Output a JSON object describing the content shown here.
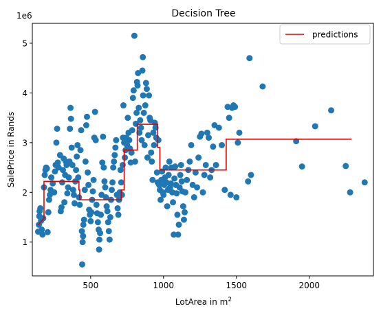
{
  "chart_data": {
    "type": "scatter",
    "title": "Decision Tree",
    "xlabel": "LotArea in m",
    "xlabel_superscript": "2",
    "ylabel": "SalePrice in Rands",
    "y_offset_label": "1e6",
    "xlim": [
      100,
      2440
    ],
    "ylim": [
      0.32,
      5.4
    ],
    "x_ticks": [
      500,
      1000,
      1500,
      2000
    ],
    "y_ticks": [
      1,
      2,
      3,
      4,
      5
    ],
    "grid": false,
    "legend": {
      "placement": "top-right",
      "entries": [
        "predictions"
      ]
    },
    "colors": {
      "points": "#1f77b4",
      "predictions": "#e00000"
    },
    "series": [
      {
        "kind": "step-line",
        "name": "predictions",
        "x": [
          138,
          180,
          180,
          420,
          420,
          425,
          425,
          710,
          710,
          730,
          730,
          820,
          820,
          960,
          960,
          975,
          975,
          1430,
          1430,
          2290
        ],
        "y": [
          1.34,
          1.48,
          2.22,
          2.22,
          2.05,
          2.05,
          1.85,
          1.85,
          2.05,
          2.05,
          2.85,
          2.85,
          3.37,
          3.37,
          2.9,
          2.9,
          2.45,
          2.45,
          3.07,
          3.07
        ]
      },
      {
        "kind": "points",
        "name": "",
        "points": [
          [
            140,
            1.21
          ],
          [
            145,
            1.35
          ],
          [
            148,
            1.52
          ],
          [
            150,
            1.62
          ],
          [
            155,
            1.68
          ],
          [
            160,
            1.43
          ],
          [
            165,
            1.25
          ],
          [
            170,
            1.15
          ],
          [
            175,
            1.48
          ],
          [
            180,
            2.1
          ],
          [
            185,
            2.35
          ],
          [
            190,
            2.45
          ],
          [
            195,
            2.5
          ],
          [
            200,
            2.48
          ],
          [
            205,
            1.2
          ],
          [
            210,
            1.6
          ],
          [
            215,
            1.85
          ],
          [
            220,
            1.95
          ],
          [
            225,
            2.05
          ],
          [
            230,
            2.3
          ],
          [
            240,
            2.18
          ],
          [
            250,
            2.0
          ],
          [
            255,
            2.42
          ],
          [
            260,
            2.55
          ],
          [
            265,
            3.0
          ],
          [
            270,
            3.28
          ],
          [
            275,
            2.6
          ],
          [
            280,
            2.5
          ],
          [
            290,
            2.75
          ],
          [
            295,
            1.62
          ],
          [
            300,
            1.7
          ],
          [
            305,
            2.2
          ],
          [
            310,
            2.45
          ],
          [
            315,
            2.68
          ],
          [
            320,
            1.8
          ],
          [
            325,
            2.35
          ],
          [
            330,
            2.62
          ],
          [
            335,
            2.55
          ],
          [
            340,
            1.98
          ],
          [
            345,
            2.1
          ],
          [
            350,
            2.3
          ],
          [
            355,
            2.62
          ],
          [
            358,
            3.28
          ],
          [
            362,
            3.7
          ],
          [
            365,
            3.48
          ],
          [
            370,
            2.9
          ],
          [
            375,
            2.55
          ],
          [
            380,
            2.05
          ],
          [
            385,
            1.95
          ],
          [
            390,
            1.78
          ],
          [
            395,
            2.22
          ],
          [
            400,
            2.45
          ],
          [
            405,
            2.72
          ],
          [
            410,
            2.95
          ],
          [
            415,
            2.3
          ],
          [
            420,
            1.9
          ],
          [
            425,
            1.75
          ],
          [
            430,
            2.85
          ],
          [
            435,
            3.25
          ],
          [
            440,
            1.22
          ],
          [
            442,
            0.55
          ],
          [
            445,
            1.0
          ],
          [
            448,
            1.12
          ],
          [
            450,
            1.35
          ],
          [
            455,
            1.45
          ],
          [
            460,
            2.05
          ],
          [
            465,
            2.62
          ],
          [
            470,
            3.35
          ],
          [
            475,
            3.52
          ],
          [
            480,
            2.4
          ],
          [
            485,
            2.15
          ],
          [
            490,
            1.65
          ],
          [
            495,
            1.55
          ],
          [
            500,
            1.42
          ],
          [
            505,
            1.6
          ],
          [
            510,
            1.85
          ],
          [
            515,
            2.02
          ],
          [
            520,
            2.25
          ],
          [
            525,
            3.1
          ],
          [
            530,
            3.62
          ],
          [
            535,
            3.05
          ],
          [
            540,
            1.75
          ],
          [
            545,
            1.58
          ],
          [
            550,
            1.4
          ],
          [
            555,
            1.25
          ],
          [
            558,
            0.85
          ],
          [
            560,
            1.05
          ],
          [
            565,
            1.18
          ],
          [
            570,
            1.55
          ],
          [
            575,
            1.95
          ],
          [
            580,
            2.6
          ],
          [
            585,
            3.12
          ],
          [
            590,
            2.5
          ],
          [
            595,
            2.22
          ],
          [
            600,
            2.1
          ],
          [
            605,
            1.9
          ],
          [
            610,
            1.72
          ],
          [
            615,
            1.62
          ],
          [
            620,
            1.4
          ],
          [
            625,
            1.22
          ],
          [
            630,
            1.05
          ],
          [
            635,
            1.5
          ],
          [
            640,
            1.85
          ],
          [
            645,
            2.05
          ],
          [
            650,
            2.2
          ],
          [
            655,
            2.5
          ],
          [
            660,
            2.62
          ],
          [
            665,
            2.75
          ],
          [
            670,
            2.9
          ],
          [
            675,
            3.05
          ],
          [
            680,
            1.95
          ],
          [
            685,
            1.68
          ],
          [
            690,
            1.55
          ],
          [
            695,
            1.85
          ],
          [
            700,
            2.0
          ],
          [
            705,
            2.45
          ],
          [
            710,
            2.2
          ],
          [
            715,
            1.95
          ],
          [
            720,
            2.55
          ],
          [
            722,
            3.1
          ],
          [
            725,
            3.75
          ],
          [
            730,
            3.0
          ],
          [
            735,
            2.7
          ],
          [
            740,
            2.85
          ],
          [
            745,
            3.1
          ],
          [
            750,
            2.95
          ],
          [
            755,
            3.5
          ],
          [
            760,
            3.2
          ],
          [
            765,
            3.05
          ],
          [
            770,
            2.88
          ],
          [
            775,
            2.6
          ],
          [
            780,
            2.8
          ],
          [
            785,
            3.25
          ],
          [
            790,
            3.9
          ],
          [
            795,
            4.05
          ],
          [
            800,
            5.15
          ],
          [
            805,
            2.62
          ],
          [
            810,
            3.38
          ],
          [
            815,
            3.6
          ],
          [
            818,
            4.22
          ],
          [
            822,
            4.15
          ],
          [
            825,
            4.4
          ],
          [
            830,
            3.7
          ],
          [
            835,
            3.2
          ],
          [
            840,
            3.45
          ],
          [
            845,
            3.3
          ],
          [
            850,
            3.05
          ],
          [
            855,
            4.45
          ],
          [
            858,
            4.72
          ],
          [
            860,
            3.95
          ],
          [
            865,
            3.6
          ],
          [
            870,
            2.95
          ],
          [
            875,
            3.75
          ],
          [
            880,
            4.2
          ],
          [
            885,
            4.08
          ],
          [
            890,
            2.7
          ],
          [
            895,
            3.15
          ],
          [
            900,
            3.95
          ],
          [
            905,
            3.5
          ],
          [
            910,
            3.45
          ],
          [
            915,
            2.8
          ],
          [
            920,
            2.62
          ],
          [
            925,
            2.25
          ],
          [
            930,
            3.2
          ],
          [
            935,
            2.95
          ],
          [
            940,
            3.4
          ],
          [
            945,
            3.3
          ],
          [
            950,
            3.1
          ],
          [
            955,
            2.4
          ],
          [
            960,
            2.2
          ],
          [
            965,
            3.05
          ],
          [
            970,
            2.15
          ],
          [
            975,
            2.05
          ],
          [
            980,
            1.85
          ],
          [
            985,
            2.25
          ],
          [
            990,
            2.42
          ],
          [
            995,
            2.0
          ],
          [
            1000,
            1.95
          ],
          [
            1005,
            2.15
          ],
          [
            1010,
            2.3
          ],
          [
            1015,
            2.5
          ],
          [
            1020,
            2.2
          ],
          [
            1025,
            1.72
          ],
          [
            1030,
            2.05
          ],
          [
            1035,
            2.35
          ],
          [
            1040,
            2.62
          ],
          [
            1045,
            2.1
          ],
          [
            1050,
            2.18
          ],
          [
            1055,
            2.5
          ],
          [
            1060,
            2.0
          ],
          [
            1065,
            1.8
          ],
          [
            1070,
            1.15
          ],
          [
            1075,
            2.28
          ],
          [
            1080,
            2.52
          ],
          [
            1085,
            2.15
          ],
          [
            1090,
            1.98
          ],
          [
            1095,
            1.55
          ],
          [
            1100,
            1.15
          ],
          [
            1105,
            1.35
          ],
          [
            1110,
            2.1
          ],
          [
            1115,
            2.35
          ],
          [
            1120,
            2.55
          ],
          [
            1125,
            2.22
          ],
          [
            1130,
            2.02
          ],
          [
            1135,
            1.72
          ],
          [
            1140,
            1.45
          ],
          [
            1145,
            1.6
          ],
          [
            1150,
            2.0
          ],
          [
            1160,
            2.25
          ],
          [
            1170,
            2.45
          ],
          [
            1180,
            2.62
          ],
          [
            1190,
            2.95
          ],
          [
            1200,
            2.15
          ],
          [
            1210,
            1.9
          ],
          [
            1220,
            2.4
          ],
          [
            1230,
            2.1
          ],
          [
            1240,
            2.7
          ],
          [
            1250,
            3.12
          ],
          [
            1260,
            3.18
          ],
          [
            1270,
            2.0
          ],
          [
            1280,
            2.35
          ],
          [
            1290,
            2.55
          ],
          [
            1300,
            3.2
          ],
          [
            1310,
            3.1
          ],
          [
            1320,
            2.3
          ],
          [
            1330,
            2.45
          ],
          [
            1340,
            2.92
          ],
          [
            1350,
            3.35
          ],
          [
            1360,
            2.55
          ],
          [
            1380,
            3.3
          ],
          [
            1400,
            2.95
          ],
          [
            1420,
            2.05
          ],
          [
            1440,
            3.72
          ],
          [
            1450,
            3.5
          ],
          [
            1460,
            1.95
          ],
          [
            1470,
            3.7
          ],
          [
            1480,
            3.75
          ],
          [
            1490,
            3.72
          ],
          [
            1500,
            1.9
          ],
          [
            1510,
            3.0
          ],
          [
            1520,
            3.2
          ],
          [
            1580,
            2.22
          ],
          [
            1590,
            4.7
          ],
          [
            1600,
            2.35
          ],
          [
            1680,
            4.13
          ],
          [
            1910,
            3.03
          ],
          [
            1950,
            2.52
          ],
          [
            2040,
            3.33
          ],
          [
            2150,
            3.65
          ],
          [
            2250,
            2.53
          ],
          [
            2280,
            2.0
          ],
          [
            2380,
            2.2
          ]
        ]
      }
    ]
  }
}
